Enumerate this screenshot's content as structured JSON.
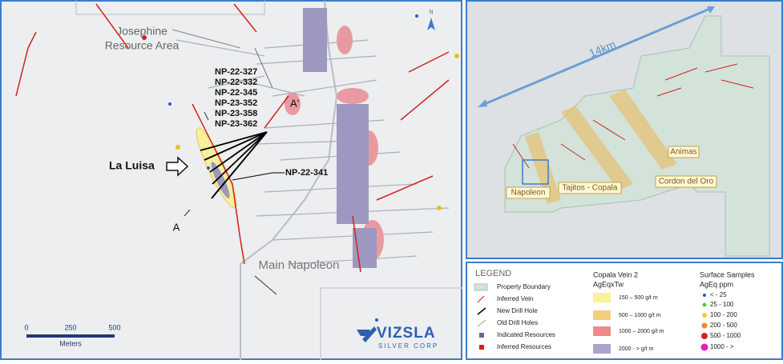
{
  "left_map": {
    "north": "N",
    "area_label": [
      "Josephine",
      "Resource Area"
    ],
    "drill_holes": [
      "NP-22-327",
      "NP-22-332",
      "NP-22-345",
      "NP-23-352",
      "NP-23-358",
      "NP-23-362"
    ],
    "section_end": "A'",
    "section_start": "A",
    "target": "La Luisa",
    "single_hole": "NP-22-341",
    "zone": "Main Napoleon",
    "scale": {
      "ticks": [
        "0",
        "250",
        "500"
      ],
      "unit": "Meters"
    },
    "logo": {
      "name": "VIZSLA",
      "sub": "SILVER CORP"
    }
  },
  "right_map": {
    "distance": "14km",
    "zones": [
      "Animas",
      "Napoleon",
      "Tajitos - Copala",
      "Cordon del Oro"
    ]
  },
  "legend": {
    "title": "LEGEND",
    "items": [
      "Property Boundary",
      "Inferred Vein",
      "New Drill Hole",
      "Old Drill Holes",
      "Indicated Resources",
      "Inferred Resources"
    ],
    "vein": {
      "title": "Copala Vein 2",
      "subtitle": "AgEqxTw",
      "classes": [
        "150 – 500 g/t m",
        "500 – 1000 g/t m",
        "1000 – 2000 g/t m",
        "2000 - > g/t m"
      ]
    },
    "samples": {
      "title": "Surface Samples",
      "subtitle": "AgEq ppm",
      "classes": [
        "< - 25",
        "25 - 100",
        "100 - 200",
        "200 - 500",
        "500 - 1000",
        "1000 - >"
      ]
    }
  }
}
